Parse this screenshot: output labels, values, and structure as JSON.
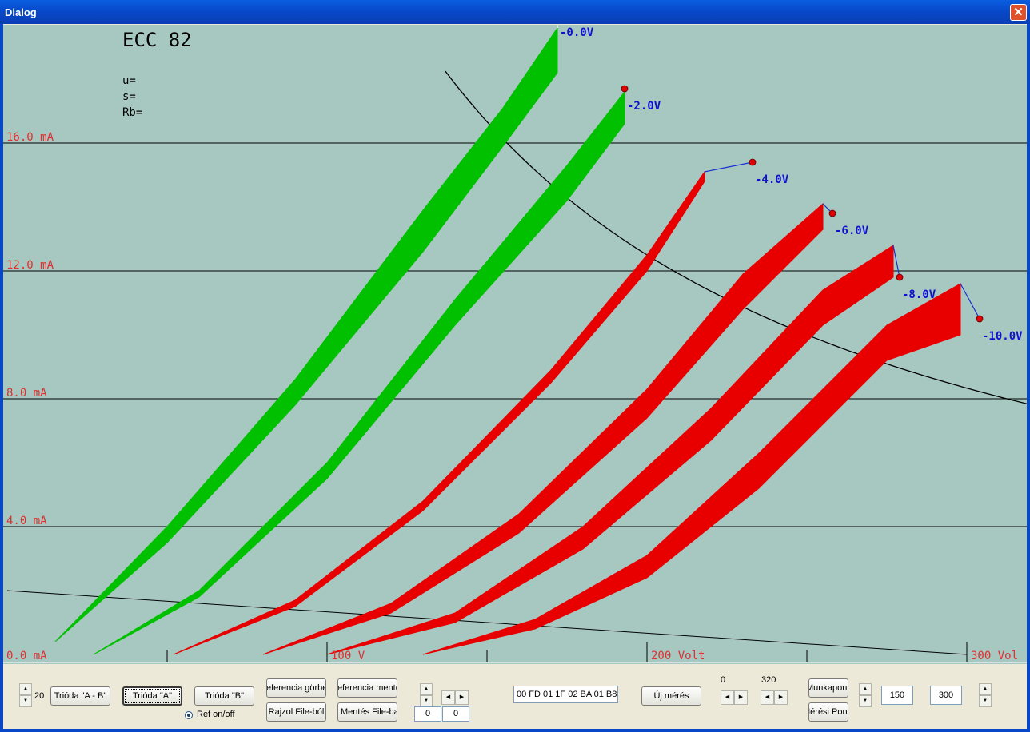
{
  "window": {
    "title": "Dialog",
    "close_glyph": "✕"
  },
  "chart_data": {
    "type": "line",
    "title": "ECC 82",
    "params": [
      "u=",
      "s=",
      "Rb="
    ],
    "x_range": [
      0,
      300
    ],
    "y_range": [
      0,
      20
    ],
    "x_ticks": [
      {
        "v": 100,
        "label": "100 V"
      },
      {
        "v": 200,
        "label": "200 Volt"
      },
      {
        "v": 300,
        "label": "300 Vol"
      }
    ],
    "y_ticks": [
      {
        "v": 0,
        "label": "0.0 mA"
      },
      {
        "v": 4,
        "label": "4.0 mA"
      },
      {
        "v": 8,
        "label": "8.0 mA"
      },
      {
        "v": 12,
        "label": "12.0 mA"
      },
      {
        "v": 16,
        "label": "16.0 mA"
      }
    ],
    "series": [
      {
        "name": "-0.0V",
        "color": "#00c000",
        "start": [
          15,
          0.4
        ],
        "lower": [
          [
            15,
            0.4
          ],
          [
            50,
            3.5
          ],
          [
            90,
            7.8
          ],
          [
            130,
            12.6
          ],
          [
            155,
            15.9
          ],
          [
            172,
            18.2
          ]
        ],
        "upper": [
          [
            15,
            0.4
          ],
          [
            50,
            4.0
          ],
          [
            90,
            8.6
          ],
          [
            130,
            13.9
          ],
          [
            155,
            17.1
          ],
          [
            172,
            19.6
          ]
        ],
        "end_mark": [
          172,
          20.0
        ]
      },
      {
        "name": "-2.0V",
        "color": "#00c000",
        "start": [
          27,
          0
        ],
        "lower": [
          [
            27,
            0
          ],
          [
            60,
            1.8
          ],
          [
            100,
            5.5
          ],
          [
            140,
            10.3
          ],
          [
            175,
            14.2
          ],
          [
            193,
            16.6
          ]
        ],
        "upper": [
          [
            27,
            0
          ],
          [
            60,
            2.0
          ],
          [
            100,
            6.0
          ],
          [
            140,
            11.1
          ],
          [
            175,
            15.3
          ],
          [
            193,
            17.6
          ]
        ],
        "end_mark": [
          193,
          17.7
        ]
      },
      {
        "name": "-4.0V",
        "color": "#e80000",
        "start": [
          52,
          0
        ],
        "lower": [
          [
            52,
            0
          ],
          [
            90,
            1.5
          ],
          [
            130,
            4.5
          ],
          [
            170,
            8.5
          ],
          [
            200,
            12.0
          ],
          [
            218,
            14.8
          ]
        ],
        "upper": [
          [
            52,
            0
          ],
          [
            90,
            1.7
          ],
          [
            130,
            4.8
          ],
          [
            170,
            8.9
          ],
          [
            200,
            12.5
          ],
          [
            218,
            15.1
          ]
        ],
        "end_mark": [
          233,
          15.4
        ]
      },
      {
        "name": "-6.0V",
        "color": "#e80000",
        "start": [
          80,
          0
        ],
        "lower": [
          [
            80,
            0
          ],
          [
            120,
            1.3
          ],
          [
            160,
            3.8
          ],
          [
            200,
            7.4
          ],
          [
            230,
            10.8
          ],
          [
            255,
            13.3
          ]
        ],
        "upper": [
          [
            80,
            0
          ],
          [
            120,
            1.6
          ],
          [
            160,
            4.4
          ],
          [
            200,
            8.3
          ],
          [
            230,
            11.9
          ],
          [
            255,
            14.1
          ]
        ],
        "end_mark": [
          258,
          13.8
        ]
      },
      {
        "name": "-8.0V",
        "color": "#e80000",
        "start": [
          100,
          0
        ],
        "lower": [
          [
            100,
            0
          ],
          [
            140,
            1.0
          ],
          [
            180,
            3.3
          ],
          [
            220,
            6.7
          ],
          [
            255,
            10.3
          ],
          [
            277,
            11.8
          ]
        ],
        "upper": [
          [
            100,
            0
          ],
          [
            140,
            1.3
          ],
          [
            180,
            4.0
          ],
          [
            220,
            7.7
          ],
          [
            255,
            11.4
          ],
          [
            277,
            12.8
          ]
        ],
        "end_mark": [
          279,
          11.8
        ]
      },
      {
        "name": "-10.0V",
        "color": "#e80000",
        "start": [
          130,
          0
        ],
        "lower": [
          [
            130,
            0
          ],
          [
            165,
            0.8
          ],
          [
            200,
            2.4
          ],
          [
            235,
            5.2
          ],
          [
            275,
            9.2
          ],
          [
            298,
            10.0
          ]
        ],
        "upper": [
          [
            130,
            0
          ],
          [
            165,
            1.1
          ],
          [
            200,
            3.1
          ],
          [
            235,
            6.3
          ],
          [
            275,
            10.3
          ],
          [
            298,
            11.6
          ]
        ],
        "end_mark": [
          304,
          10.5
        ]
      }
    ],
    "load_hyperbola": {
      "watts": 2.5,
      "x_from": 137,
      "x_to": 320
    },
    "load_line": {
      "from": [
        0,
        2.0
      ],
      "to": [
        300,
        0
      ]
    }
  },
  "controls": {
    "spinner_value": "20",
    "btn_ab": "Trióda \"A - B\"",
    "btn_a": "Trióda  \"A\"",
    "btn_b": "Trióda  \"B\"",
    "btn_ref_curve": "Referencia görbe",
    "btn_ref_save": "Referencia mentés",
    "btn_draw_file": "Rajzol File-ból",
    "btn_save_file": "Mentés File-ba",
    "ref_toggle": "Ref on/off",
    "field_left_1": "0",
    "field_left_2": "0",
    "hex_field": "00 FD 01 1F 02 BA 01 B8",
    "btn_new": "Új mérés",
    "range_min": "0",
    "range_max": "320",
    "btn_workpoint": "Munkapont",
    "btn_measure_point": "Mérési Pont",
    "field_1": "150",
    "field_2": "300"
  }
}
